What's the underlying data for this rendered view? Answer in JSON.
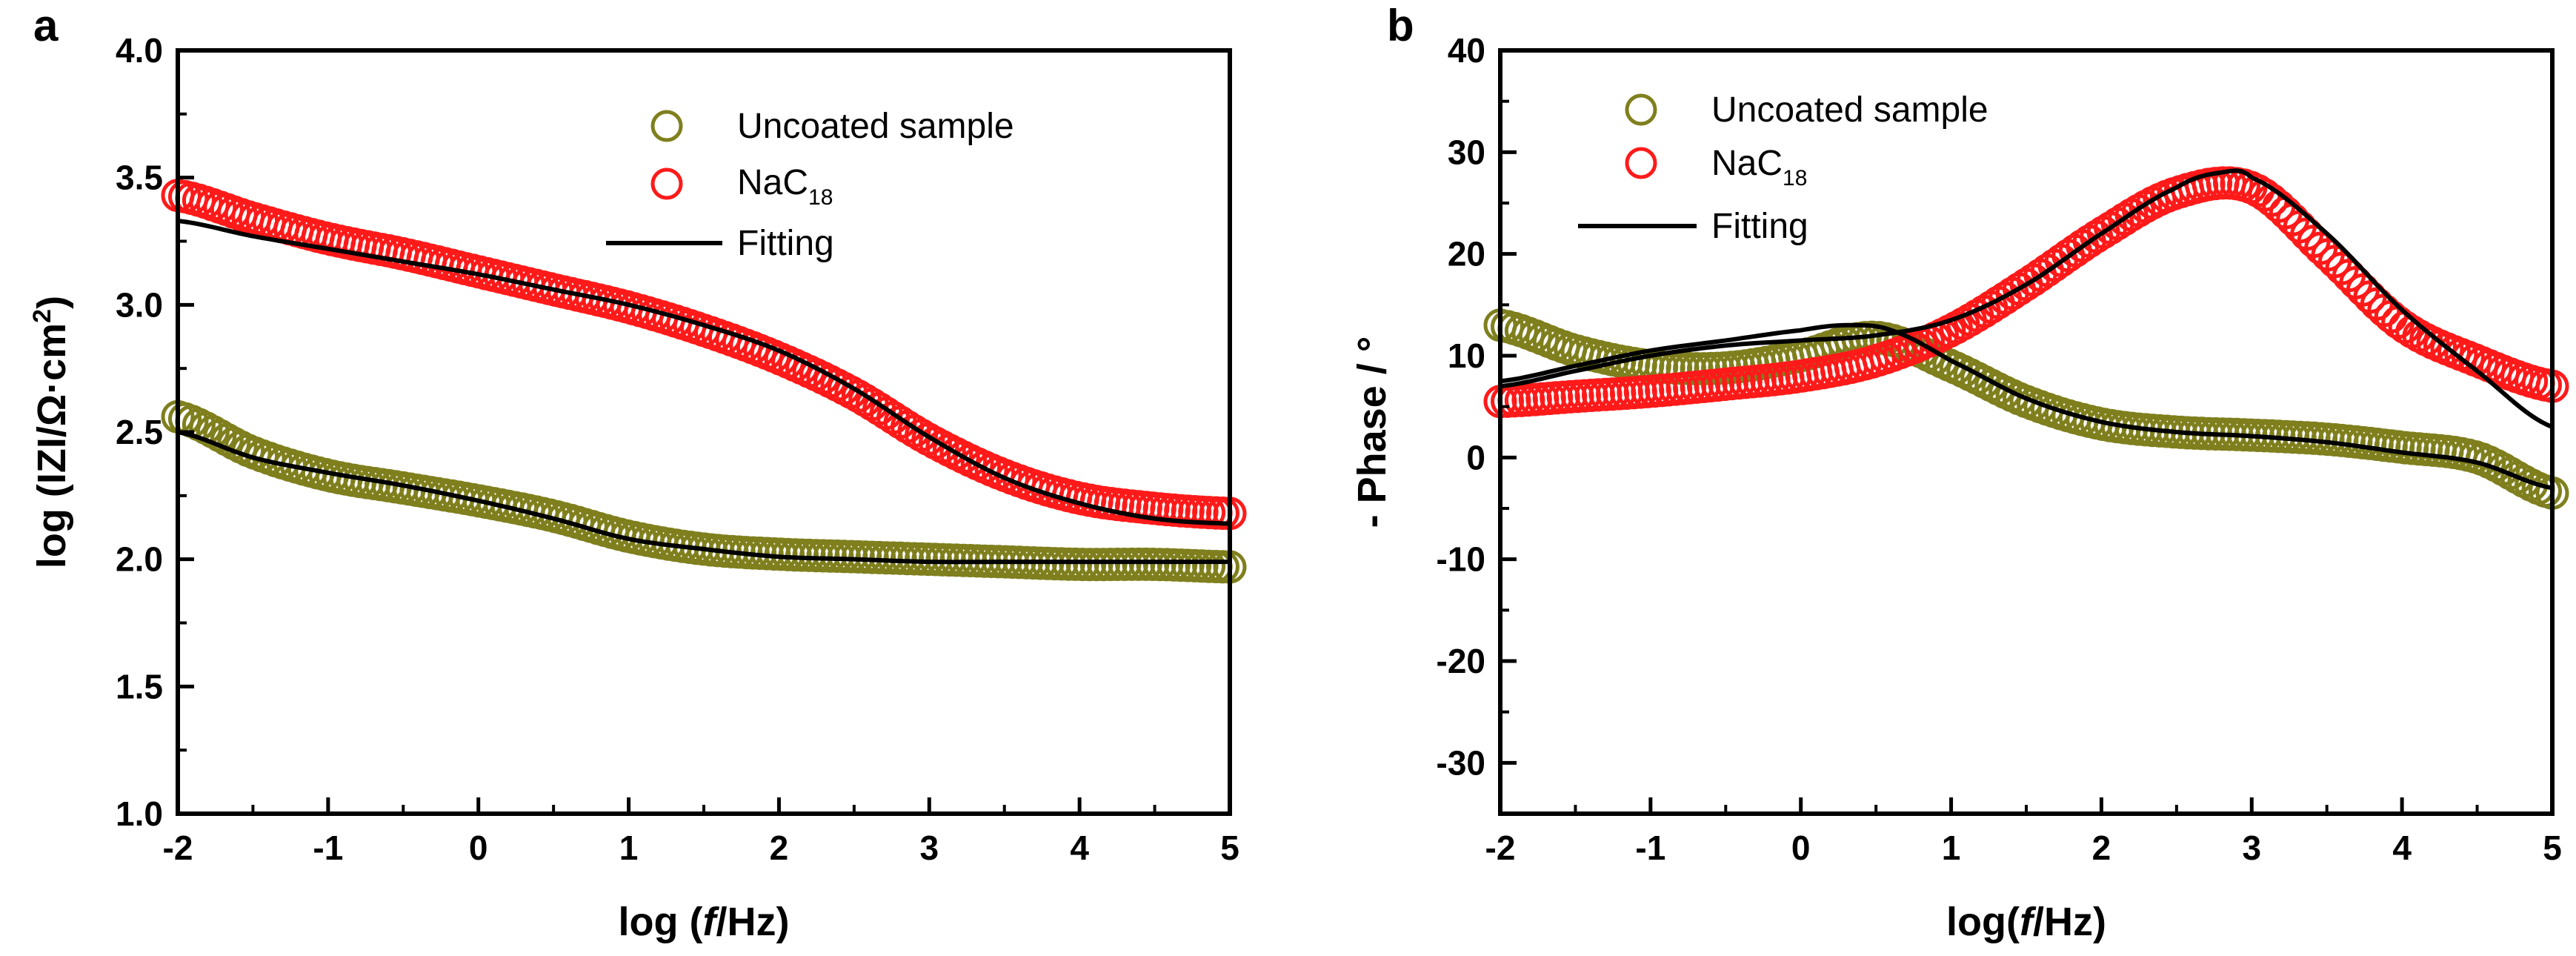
{
  "panels": {
    "a": {
      "label": "a"
    },
    "b": {
      "label": "b"
    }
  },
  "legend_labels": {
    "uncoated": "Uncoated sample",
    "nac18_main": "NaC",
    "nac18_sub": "18",
    "fitting": "Fitting"
  },
  "colors": {
    "uncoated": "#7f7f1e",
    "nac18": "#ff1a1a",
    "fitting": "#000000"
  },
  "chart_data": [
    {
      "panel": "a",
      "type": "scatter",
      "title": "",
      "xlabel": {
        "prefix": "log (",
        "italic": "f",
        "suffix": "/Hz)"
      },
      "ylabel": {
        "main": "log (IZI/Ω·cm",
        "sup": "2",
        "end": ")"
      },
      "xlim": [
        -2,
        5
      ],
      "ylim": [
        1.0,
        4.0
      ],
      "xticks": [
        "-2",
        "-1",
        "0",
        "1",
        "2",
        "3",
        "4",
        "5"
      ],
      "yticks": [
        "1.0",
        "1.5",
        "2.0",
        "2.5",
        "3.0",
        "3.5",
        "4.0"
      ],
      "legend_position": "top-right",
      "series": [
        {
          "name": "Uncoated sample",
          "kind": "markers",
          "x": [
            -2.0,
            -1.5,
            -1.0,
            -0.5,
            0.0,
            0.5,
            1.0,
            1.5,
            2.0,
            2.5,
            3.0,
            3.5,
            4.0,
            4.5,
            5.0
          ],
          "y": [
            2.56,
            2.42,
            2.33,
            2.28,
            2.23,
            2.17,
            2.09,
            2.04,
            2.02,
            2.01,
            2.0,
            1.99,
            1.98,
            1.98,
            1.97
          ]
        },
        {
          "name": "NaC18",
          "kind": "markers",
          "x": [
            -2.0,
            -1.5,
            -1.0,
            -0.5,
            0.0,
            0.5,
            1.0,
            1.5,
            2.0,
            2.5,
            3.0,
            3.5,
            4.0,
            4.5,
            5.0
          ],
          "y": [
            3.43,
            3.34,
            3.26,
            3.2,
            3.13,
            3.06,
            2.99,
            2.9,
            2.79,
            2.65,
            2.47,
            2.33,
            2.24,
            2.2,
            2.18
          ]
        },
        {
          "name": "Fitting (Uncoated)",
          "kind": "line",
          "x": [
            -2.0,
            -1.5,
            -1.0,
            -0.5,
            0.0,
            0.5,
            1.0,
            1.5,
            2.0,
            2.5,
            3.0,
            3.5,
            4.0,
            4.5,
            5.0
          ],
          "y": [
            2.5,
            2.4,
            2.34,
            2.29,
            2.23,
            2.16,
            2.08,
            2.04,
            2.01,
            2.0,
            1.99,
            1.99,
            1.99,
            1.99,
            1.99
          ]
        },
        {
          "name": "Fitting (NaC18)",
          "kind": "line",
          "x": [
            -2.0,
            -1.5,
            -1.0,
            -0.5,
            0.0,
            0.5,
            1.0,
            1.5,
            2.0,
            2.5,
            3.0,
            3.5,
            4.0,
            4.5,
            5.0
          ],
          "y": [
            3.33,
            3.27,
            3.22,
            3.17,
            3.12,
            3.06,
            3.0,
            2.92,
            2.82,
            2.67,
            2.48,
            2.32,
            2.22,
            2.16,
            2.14
          ]
        }
      ]
    },
    {
      "panel": "b",
      "type": "scatter",
      "title": "",
      "xlabel": {
        "prefix": "log(",
        "italic": "f",
        "suffix": "/Hz)"
      },
      "ylabel": {
        "main": "- Phase / °",
        "sup": "",
        "end": ""
      },
      "xlim": [
        -2,
        5
      ],
      "ylim": [
        -35,
        40
      ],
      "xticks": [
        "-2",
        "-1",
        "0",
        "1",
        "2",
        "3",
        "4",
        "5"
      ],
      "yticks": [
        "-30",
        "-20",
        "-10",
        "0",
        "10",
        "20",
        "30",
        "40"
      ],
      "legend_position": "top-left",
      "series": [
        {
          "name": "Uncoated sample",
          "kind": "markers",
          "x": [
            -2.0,
            -1.5,
            -1.0,
            -0.5,
            0.0,
            0.5,
            1.0,
            1.5,
            2.0,
            2.5,
            3.0,
            3.5,
            4.0,
            4.5,
            5.0
          ],
          "y": [
            13,
            10.5,
            9.0,
            8.8,
            10.0,
            11.8,
            9.0,
            5.5,
            3.3,
            2.5,
            2.2,
            1.8,
            1.0,
            0.0,
            -3.5
          ]
        },
        {
          "name": "NaC18",
          "kind": "markers",
          "x": [
            -2.0,
            -1.5,
            -1.0,
            -0.5,
            0.0,
            0.5,
            1.0,
            1.5,
            2.0,
            2.5,
            3.0,
            3.5,
            4.0,
            4.5,
            5.0
          ],
          "y": [
            5.5,
            6.0,
            6.5,
            7.2,
            8.0,
            9.5,
            12.5,
            17.0,
            22.0,
            26.0,
            26.5,
            20.0,
            13.0,
            9.5,
            7.0
          ]
        },
        {
          "name": "Fitting (Uncoated)",
          "kind": "line",
          "x": [
            -2.0,
            -1.5,
            -1.0,
            -0.5,
            0.0,
            0.3,
            0.6,
            1.0,
            1.5,
            2.0,
            2.5,
            3.0,
            3.5,
            4.0,
            4.5,
            5.0
          ],
          "y": [
            7.5,
            9.0,
            10.5,
            11.5,
            12.5,
            13.0,
            12.5,
            9.5,
            5.8,
            3.5,
            2.5,
            2.1,
            1.5,
            0.5,
            -0.5,
            -3.0
          ]
        },
        {
          "name": "Fitting (NaC18)",
          "kind": "line",
          "x": [
            -2.0,
            -1.5,
            -1.0,
            -0.5,
            0.0,
            0.5,
            1.0,
            1.5,
            2.0,
            2.5,
            2.8,
            3.0,
            3.5,
            4.0,
            4.5,
            5.0
          ],
          "y": [
            7.0,
            8.5,
            10.0,
            11.0,
            11.5,
            12.0,
            13.5,
            17.0,
            22.0,
            26.5,
            28.0,
            27.5,
            22.0,
            14.5,
            8.5,
            3.0
          ]
        }
      ]
    }
  ]
}
